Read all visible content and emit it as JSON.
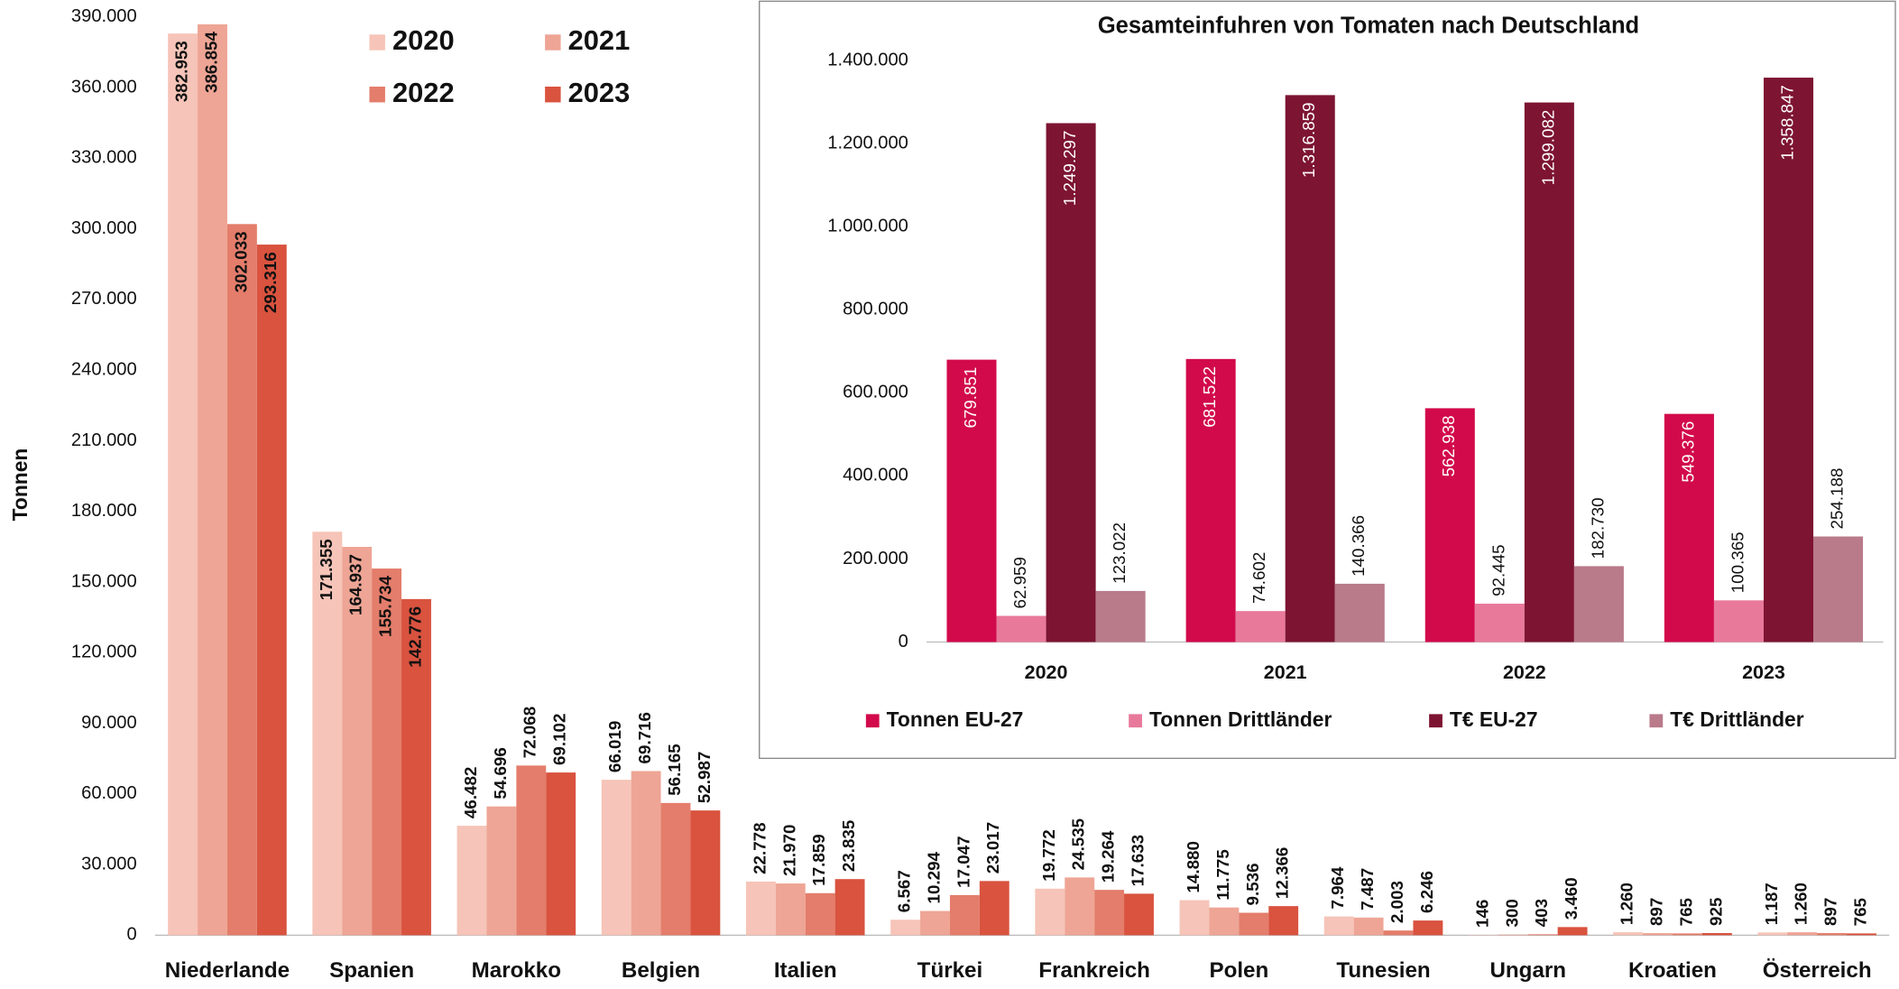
{
  "chart_data": [
    {
      "type": "bar",
      "y_label": "Tonnen",
      "categories": [
        "Niederlande",
        "Spanien",
        "Marokko",
        "Belgien",
        "Italien",
        "Türkei",
        "Frankreich",
        "Polen",
        "Tunesien",
        "Ungarn",
        "Kroatien",
        "Österreich"
      ],
      "series": [
        {
          "name": "2020",
          "color": "#f6c4b8",
          "values": [
            382953,
            171355,
            46482,
            66019,
            22778,
            6567,
            19772,
            14880,
            7964,
            146,
            1260,
            1187
          ],
          "value_labels": [
            "382.953",
            "171.355",
            "46.482",
            "66.019",
            "22.778",
            "6.567",
            "19.772",
            "14.880",
            "7.964",
            "146",
            "1.260",
            "1.187"
          ]
        },
        {
          "name": "2021",
          "color": "#eea595",
          "values": [
            386854,
            164937,
            54696,
            69716,
            21970,
            10294,
            24535,
            11775,
            7487,
            300,
            897,
            1260
          ],
          "value_labels": [
            "386.854",
            "164.937",
            "54.696",
            "69.716",
            "21.970",
            "10.294",
            "24.535",
            "11.775",
            "7.487",
            "300",
            "897",
            "1.260"
          ]
        },
        {
          "name": "2022",
          "color": "#e47d6b",
          "values": [
            302033,
            155734,
            72068,
            56165,
            17859,
            17047,
            19264,
            9536,
            2003,
            403,
            765,
            897
          ],
          "value_labels": [
            "302.033",
            "155.734",
            "72.068",
            "56.165",
            "17.859",
            "17.047",
            "19.264",
            "9.536",
            "2.003",
            "403",
            "765",
            "897"
          ]
        },
        {
          "name": "2023",
          "color": "#d9533f",
          "values": [
            293316,
            142776,
            69102,
            52987,
            23835,
            23017,
            17633,
            12366,
            6246,
            3460,
            925,
            765
          ],
          "value_labels": [
            "293.316",
            "142.776",
            "69.102",
            "52.987",
            "23.835",
            "23.017",
            "17.633",
            "12.366",
            "6.246",
            "3.460",
            "925",
            "765"
          ]
        }
      ],
      "ylim": [
        0,
        390000
      ],
      "yticks": [
        0,
        {
          "value": 30000,
          "label": "30.000"
        },
        {
          "value": 60000,
          "label": "60.000"
        },
        {
          "value": 90000,
          "label": "90.000"
        },
        {
          "value": 120000,
          "label": "120.000"
        },
        {
          "value": 150000,
          "label": "150.000"
        },
        {
          "value": 180000,
          "label": "180.000"
        },
        {
          "value": 210000,
          "label": "210.000"
        },
        {
          "value": 240000,
          "label": "240.000"
        },
        {
          "value": 270000,
          "label": "270.000"
        },
        {
          "value": 300000,
          "label": "300.000"
        },
        {
          "value": 330000,
          "label": "330.000"
        },
        {
          "value": 360000,
          "label": "360.000"
        },
        {
          "value": 390000,
          "label": "390.000"
        }
      ],
      "grid": false,
      "legend": "top-left"
    },
    {
      "type": "bar",
      "title": "Gesamteinfuhren von Tomaten nach Deutschland",
      "categories": [
        "2020",
        "2021",
        "2022",
        "2023"
      ],
      "series": [
        {
          "name": "Tonnen EU-27",
          "color": "#d20a4b",
          "values": [
            679851,
            681522,
            562938,
            549376
          ],
          "value_labels": [
            "679.851",
            "681.522",
            "562.938",
            "549.376"
          ]
        },
        {
          "name": "Tonnen Drittländer",
          "color": "#e8799b",
          "values": [
            62959,
            74602,
            92445,
            100365
          ],
          "value_labels": [
            "62.959",
            "74.602",
            "92.445",
            "100.365"
          ]
        },
        {
          "name": "T€ EU-27",
          "color": "#7d1432",
          "values": [
            1249297,
            1316859,
            1299082,
            1358847
          ],
          "value_labels": [
            "1.249.297",
            "1.316.859",
            "1.299.082",
            "1.358.847"
          ]
        },
        {
          "name": "T€ Drittländer",
          "color": "#b97a8a",
          "values": [
            123022,
            140366,
            182730,
            254188
          ],
          "value_labels": [
            "123.022",
            "140.366",
            "182.730",
            "254.188"
          ]
        }
      ],
      "ylim": [
        0,
        1400000
      ],
      "yticks": [
        0,
        {
          "value": 200000,
          "label": "200.000"
        },
        {
          "value": 400000,
          "label": "400.000"
        },
        {
          "value": 600000,
          "label": "600.000"
        },
        {
          "value": 800000,
          "label": "800.000"
        },
        {
          "value": 1000000,
          "label": "1.000.000"
        },
        {
          "value": 1200000,
          "label": "1.200.000"
        },
        {
          "value": 1400000,
          "label": "1.400.000"
        }
      ],
      "grid": false,
      "legend": "bottom"
    }
  ]
}
